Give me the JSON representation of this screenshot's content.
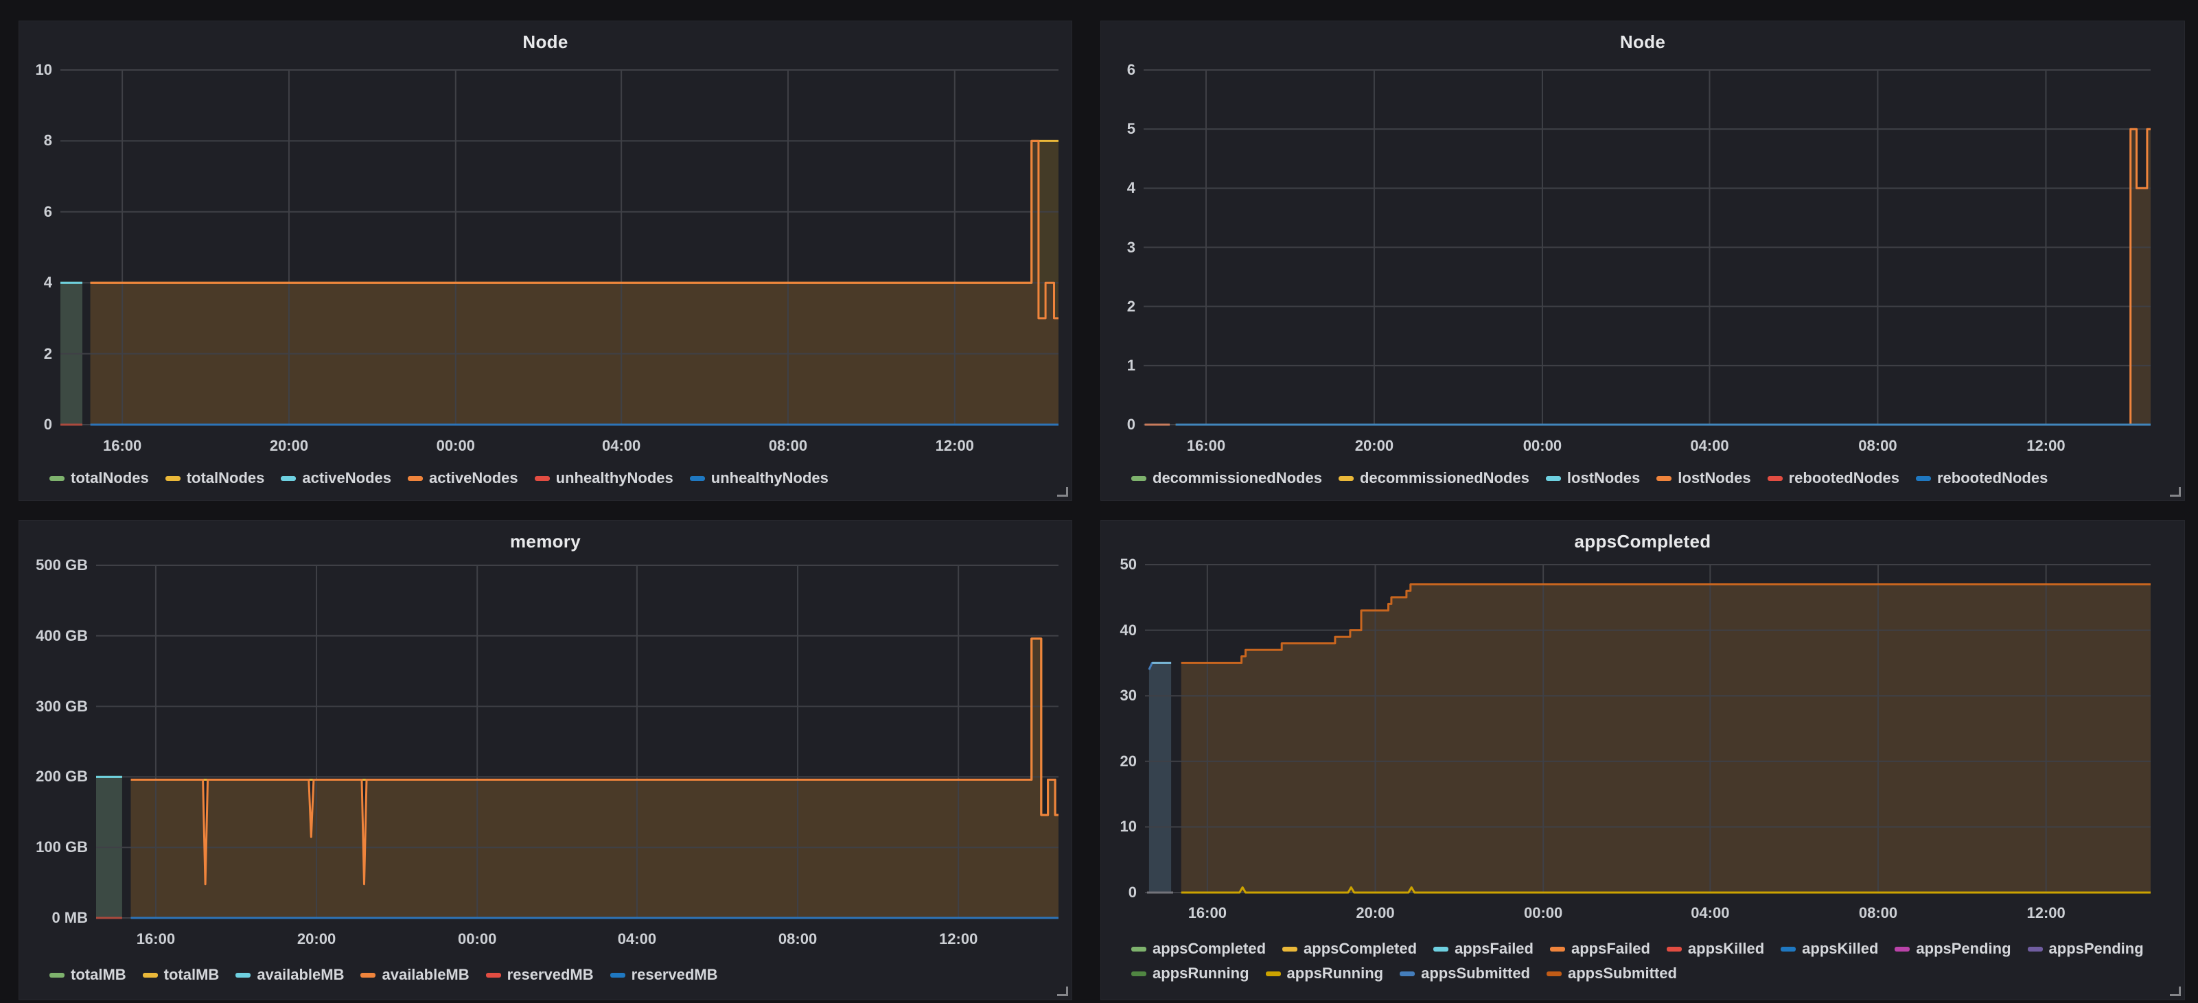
{
  "page": {
    "background": "#131316",
    "panel_background": "#1f2026",
    "grid_color": "#3f4046"
  },
  "palette": {
    "green": "#7EB26D",
    "yellow": "#EAB839",
    "cyan": "#6ED0E0",
    "orange": "#EF843C",
    "red": "#E24D42",
    "blue": "#1F78C1",
    "magenta": "#BA43A9",
    "violet": "#705DA0",
    "dark_green": "#508642",
    "dark_yellow": "#CCA300",
    "dark_blue": "#447EBC",
    "dark_orange": "#C15C17"
  },
  "x_axis": {
    "labels": [
      "16:00",
      "20:00",
      "00:00",
      "04:00",
      "08:00",
      "12:00"
    ],
    "fractions": [
      0.062,
      0.229,
      0.396,
      0.562,
      0.729,
      0.896
    ]
  },
  "chart_data": [
    {
      "type": "area",
      "title": "Node",
      "ylim": [
        0,
        10
      ],
      "y_tick_values": [
        10,
        8,
        6,
        4,
        2,
        0
      ],
      "y_tick_labels": [
        "10",
        "8",
        "6",
        "4",
        "2",
        "0"
      ],
      "x_tick_labels": [
        "16:00",
        "20:00",
        "00:00",
        "04:00",
        "08:00",
        "12:00"
      ],
      "legend_rows": [
        [
          {
            "label": "totalNodes",
            "color": "#7EB26D"
          },
          {
            "label": "totalNodes",
            "color": "#EAB839"
          },
          {
            "label": "activeNodes",
            "color": "#6ED0E0"
          },
          {
            "label": "activeNodes",
            "color": "#EF843C"
          },
          {
            "label": "unhealthyNodes",
            "color": "#E24D42"
          },
          {
            "label": "unhealthyNodes",
            "color": "#1F78C1"
          }
        ]
      ],
      "series": [
        {
          "name": "totalNodes",
          "color": "#7EB26D",
          "fill": "#3d4a43",
          "width": 3,
          "points": [
            [
              0.0,
              4
            ],
            [
              0.022,
              4
            ]
          ]
        },
        {
          "name": "activeNodes",
          "color": "#6ED0E0",
          "width": 3,
          "points": [
            [
              0.0,
              4
            ],
            [
              0.022,
              4
            ]
          ]
        },
        {
          "name": "unhealthyNodes",
          "color": "#AC4A3E",
          "width": 3,
          "points": [
            [
              0.0,
              0
            ],
            [
              0.022,
              0
            ]
          ]
        },
        {
          "name": "totalNodes",
          "color": "#EAB839",
          "fill": "#443b27",
          "width": 3,
          "points": [
            [
              0.03,
              4
            ],
            [
              0.973,
              4
            ],
            [
              0.973,
              8
            ],
            [
              1,
              8
            ]
          ]
        },
        {
          "name": "activeNodes",
          "color": "#EF843C",
          "fill": "#4a3a28",
          "width": 3,
          "points": [
            [
              0.03,
              4
            ],
            [
              0.973,
              4
            ],
            [
              0.973,
              8
            ],
            [
              0.98,
              8
            ],
            [
              0.98,
              3
            ],
            [
              0.987,
              3
            ],
            [
              0.987,
              4
            ],
            [
              0.9955,
              4
            ],
            [
              0.9955,
              3
            ],
            [
              1,
              3
            ]
          ]
        },
        {
          "name": "unhealthyNodes",
          "color": "#2D74B8",
          "width": 3,
          "points": [
            [
              0.03,
              0
            ],
            [
              1,
              0
            ]
          ]
        }
      ]
    },
    {
      "type": "area",
      "title": "Node",
      "ylim": [
        0,
        6
      ],
      "y_tick_values": [
        6,
        5,
        4,
        3,
        2,
        1,
        0
      ],
      "y_tick_labels": [
        "6",
        "5",
        "4",
        "3",
        "2",
        "1",
        "0"
      ],
      "x_tick_labels": [
        "16:00",
        "20:00",
        "00:00",
        "04:00",
        "08:00",
        "12:00"
      ],
      "legend_rows": [
        [
          {
            "label": "decommissionedNodes",
            "color": "#7EB26D"
          },
          {
            "label": "decommissionedNodes",
            "color": "#EAB839"
          },
          {
            "label": "lostNodes",
            "color": "#6ED0E0"
          },
          {
            "label": "lostNodes",
            "color": "#EF843C"
          },
          {
            "label": "rebootedNodes",
            "color": "#E24D42"
          },
          {
            "label": "rebootedNodes",
            "color": "#1F78C1"
          }
        ]
      ],
      "series": [
        {
          "name": "decommissionedNodes",
          "color": "#7EB26D",
          "width": 3,
          "points": [
            [
              0.032,
              0
            ],
            [
              1,
              0
            ]
          ]
        },
        {
          "name": "decommissionedNodes",
          "color": "#EAB839",
          "width": 3,
          "points": [
            [
              0.032,
              0
            ],
            [
              1,
              0
            ]
          ]
        },
        {
          "name": "lostNodes",
          "color": "#6ED0E0",
          "width": 3,
          "points": [
            [
              0.032,
              0
            ],
            [
              1,
              0
            ]
          ]
        },
        {
          "name": "lostNodes",
          "color": "#EF843C",
          "fill": "#44372a",
          "width": 3,
          "points": [
            [
              0.032,
              0
            ],
            [
              0.98,
              0
            ],
            [
              0.98,
              5
            ],
            [
              0.986,
              5
            ],
            [
              0.986,
              4
            ],
            [
              0.9965,
              4
            ],
            [
              0.9965,
              5
            ],
            [
              1,
              5
            ]
          ]
        },
        {
          "name": "rebootedNodes",
          "color": "#C87B5C",
          "width": 3,
          "points": [
            [
              0.001,
              0
            ],
            [
              0.026,
              0
            ]
          ]
        },
        {
          "name": "rebootedNodes",
          "color": "#4186BC",
          "width": 3,
          "points": [
            [
              0.032,
              0
            ],
            [
              1,
              0
            ]
          ]
        }
      ]
    },
    {
      "type": "area",
      "title": "memory",
      "ylim": [
        0,
        500
      ],
      "y_tick_values": [
        500,
        400,
        300,
        200,
        100,
        0
      ],
      "y_tick_labels": [
        "500 GB",
        "400 GB",
        "300 GB",
        "200 GB",
        "100 GB",
        "0 MB"
      ],
      "x_tick_labels": [
        "16:00",
        "20:00",
        "00:00",
        "04:00",
        "08:00",
        "12:00"
      ],
      "legend_rows": [
        [
          {
            "label": "totalMB",
            "color": "#7EB26D"
          },
          {
            "label": "totalMB",
            "color": "#EAB839"
          },
          {
            "label": "availableMB",
            "color": "#6ED0E0"
          },
          {
            "label": "availableMB",
            "color": "#EF843C"
          },
          {
            "label": "reservedMB",
            "color": "#E24D42"
          },
          {
            "label": "reservedMB",
            "color": "#1F78C1"
          }
        ]
      ],
      "series": [
        {
          "name": "totalMB",
          "color": "#7EB26D",
          "fill": "#3c4a44",
          "width": 3,
          "points": [
            [
              0.0,
              200
            ],
            [
              0.027,
              200
            ]
          ]
        },
        {
          "name": "availableMB",
          "color": "#6ED0E0",
          "width": 3,
          "points": [
            [
              0.0,
              200
            ],
            [
              0.027,
              200
            ]
          ]
        },
        {
          "name": "reservedMB",
          "color": "#AC4A3E",
          "width": 3,
          "points": [
            [
              0.0,
              0
            ],
            [
              0.027,
              0
            ]
          ]
        },
        {
          "name": "totalMB",
          "color": "#EAB839",
          "width": 3,
          "points": [
            [
              0.036,
              196
            ],
            [
              0.972,
              196
            ],
            [
              0.972,
              396
            ],
            [
              0.982,
              396
            ],
            [
              0.982,
              146
            ],
            [
              0.989,
              146
            ],
            [
              0.989,
              196
            ],
            [
              0.9965,
              196
            ],
            [
              0.9965,
              146
            ],
            [
              1,
              146
            ]
          ]
        },
        {
          "name": "availableMB",
          "color": "#EF843C",
          "fill": "#4a3a28",
          "width": 3,
          "points": [
            [
              0.036,
              196
            ],
            [
              0.111,
              196
            ],
            [
              0.1135,
              48
            ],
            [
              0.116,
              196
            ],
            [
              0.221,
              196
            ],
            [
              0.2235,
              115
            ],
            [
              0.226,
              196
            ],
            [
              0.276,
              196
            ],
            [
              0.2785,
              48
            ],
            [
              0.281,
              196
            ],
            [
              0.972,
              196
            ],
            [
              0.972,
              396
            ],
            [
              0.982,
              396
            ],
            [
              0.982,
              146
            ],
            [
              0.989,
              146
            ],
            [
              0.989,
              196
            ],
            [
              0.9965,
              196
            ],
            [
              0.9965,
              146
            ],
            [
              1,
              146
            ]
          ]
        },
        {
          "name": "reservedMB",
          "color": "#2D74B8",
          "width": 3,
          "points": [
            [
              0.036,
              0
            ],
            [
              1,
              0
            ]
          ]
        }
      ]
    },
    {
      "type": "area",
      "title": "appsCompleted",
      "ylim": [
        0,
        50
      ],
      "y_tick_values": [
        50,
        40,
        30,
        20,
        10,
        0
      ],
      "y_tick_labels": [
        "50",
        "40",
        "30",
        "20",
        "10",
        "0"
      ],
      "x_tick_labels": [
        "16:00",
        "20:00",
        "00:00",
        "04:00",
        "08:00",
        "12:00"
      ],
      "legend_rows": [
        [
          {
            "label": "appsCompleted",
            "color": "#7EB26D"
          },
          {
            "label": "appsCompleted",
            "color": "#EAB839"
          },
          {
            "label": "appsFailed",
            "color": "#6ED0E0"
          },
          {
            "label": "appsFailed",
            "color": "#EF843C"
          },
          {
            "label": "appsKilled",
            "color": "#E24D42"
          },
          {
            "label": "appsKilled",
            "color": "#1F78C1"
          },
          {
            "label": "appsPending",
            "color": "#BA43A9"
          },
          {
            "label": "appsPending",
            "color": "#705DA0"
          }
        ],
        [
          {
            "label": "appsRunning",
            "color": "#508642"
          },
          {
            "label": "appsRunning",
            "color": "#CCA300"
          },
          {
            "label": "appsSubmitted",
            "color": "#447EBC"
          },
          {
            "label": "appsSubmitted",
            "color": "#C15C17"
          }
        ]
      ],
      "series": [
        {
          "name": "appsKilled",
          "color": "#73737a",
          "width": 3,
          "points": [
            [
              0.002,
              0
            ],
            [
              0.028,
              0
            ]
          ]
        },
        {
          "name": "appsSubmitted",
          "color": "#447EBC",
          "fill": "#36424e",
          "width": 3,
          "points": [
            [
              0.004,
              34
            ],
            [
              0.007,
              35
            ],
            [
              0.026,
              35
            ]
          ]
        },
        {
          "name": "appsFailed",
          "color": "#79B6D4",
          "width": 3,
          "points": [
            [
              0.007,
              35
            ],
            [
              0.026,
              35
            ]
          ]
        },
        {
          "name": "appsSubmitted",
          "color": "#C9661F",
          "fill": "#46382a",
          "width": 3,
          "points": [
            [
              0.036,
              35
            ],
            [
              0.096,
              35
            ],
            [
              0.096,
              36
            ],
            [
              0.1,
              36
            ],
            [
              0.1,
              37
            ],
            [
              0.136,
              37
            ],
            [
              0.136,
              38
            ],
            [
              0.189,
              38
            ],
            [
              0.189,
              39
            ],
            [
              0.204,
              39
            ],
            [
              0.204,
              40
            ],
            [
              0.215,
              40
            ],
            [
              0.215,
              43
            ],
            [
              0.242,
              43
            ],
            [
              0.242,
              44
            ],
            [
              0.245,
              44
            ],
            [
              0.245,
              45
            ],
            [
              0.26,
              45
            ],
            [
              0.26,
              46
            ],
            [
              0.264,
              46
            ],
            [
              0.264,
              47
            ],
            [
              1,
              47
            ]
          ]
        },
        {
          "name": "appsRunning",
          "color": "#CCA300",
          "width": 3,
          "points": [
            [
              0.036,
              0
            ],
            [
              0.094,
              0
            ],
            [
              0.097,
              0.8
            ],
            [
              0.1,
              0
            ],
            [
              0.202,
              0
            ],
            [
              0.205,
              0.8
            ],
            [
              0.208,
              0
            ],
            [
              0.262,
              0
            ],
            [
              0.265,
              0.8
            ],
            [
              0.268,
              0
            ],
            [
              1,
              0
            ]
          ]
        }
      ]
    }
  ]
}
